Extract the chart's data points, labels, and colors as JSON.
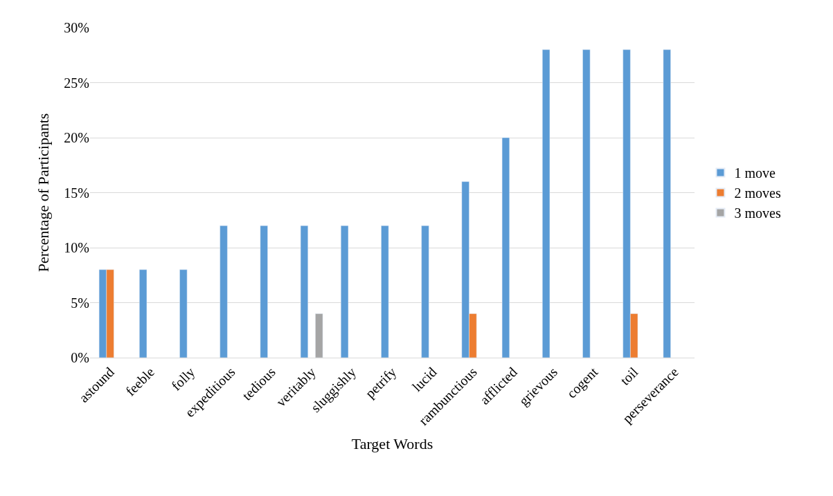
{
  "chart_data": {
    "type": "bar",
    "xlabel": "Target Words",
    "ylabel": "Percentage of Participants",
    "categories": [
      "astound",
      "feeble",
      "folly",
      "expeditious",
      "tedious",
      "veritably",
      "sluggishly",
      "petrify",
      "lucid",
      "rambunctious",
      "afflicted",
      "grievous",
      "cogent",
      "toil",
      "perseverance"
    ],
    "series": [
      {
        "name": "1 move",
        "color": "#5b9bd5",
        "values": [
          8,
          8,
          8,
          12,
          12,
          12,
          12,
          12,
          12,
          16,
          20,
          28,
          28,
          28,
          28
        ]
      },
      {
        "name": "2 moves",
        "color": "#ed7d31",
        "values": [
          8,
          null,
          null,
          null,
          null,
          null,
          null,
          null,
          null,
          4,
          null,
          null,
          null,
          4,
          null
        ]
      },
      {
        "name": "3 moves",
        "color": "#a5a5a5",
        "values": [
          null,
          null,
          null,
          null,
          null,
          4,
          null,
          null,
          null,
          null,
          null,
          null,
          null,
          null,
          null
        ]
      }
    ],
    "ylim": [
      0,
      30
    ],
    "yticks": [
      {
        "value": 0,
        "label": "0%"
      },
      {
        "value": 5,
        "label": "5%"
      },
      {
        "value": 10,
        "label": "10%"
      },
      {
        "value": 15,
        "label": "15%"
      },
      {
        "value": 20,
        "label": "20%"
      },
      {
        "value": 25,
        "label": "25%"
      },
      {
        "value": 30,
        "label": "30%"
      }
    ],
    "grid": "y",
    "legend": "right"
  }
}
